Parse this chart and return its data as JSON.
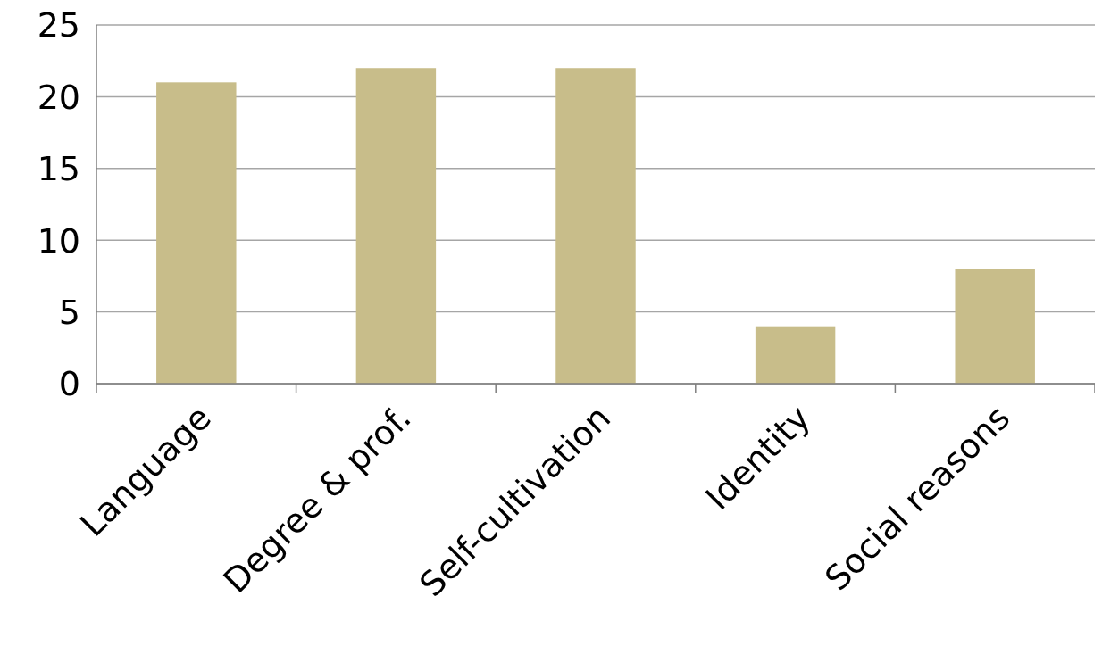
{
  "chart_data": {
    "type": "bar",
    "categories": [
      "Language",
      "Degree & prof.",
      "Self-cultivation",
      "Identity",
      "Social reasons"
    ],
    "values": [
      21,
      22,
      22,
      4,
      8
    ],
    "color": "#c8bd8a",
    "ylim": [
      0,
      25
    ],
    "yticks": [
      0,
      5,
      10,
      15,
      20,
      25
    ],
    "grid": "y"
  }
}
